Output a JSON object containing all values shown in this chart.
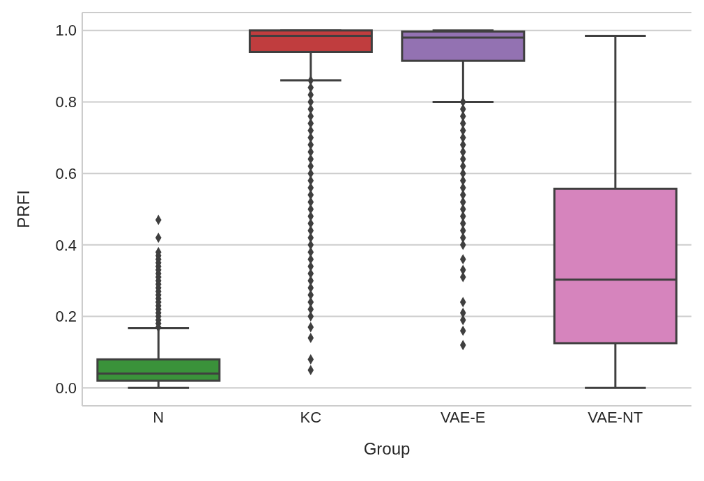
{
  "chart_data": {
    "type": "box",
    "xlabel": "Group",
    "ylabel": "PRFI",
    "categories": [
      "N",
      "KC",
      "VAE-E",
      "VAE-NT"
    ],
    "colors": [
      "#3a923a",
      "#c03d3e",
      "#9372b2",
      "#d684bd"
    ],
    "boxes": [
      {
        "low": 0,
        "q1": 0.02,
        "median": 0.04,
        "q3": 0.08,
        "high": 0.167,
        "outliers": [
          0.17,
          0.18,
          0.19,
          0.2,
          0.21,
          0.22,
          0.23,
          0.24,
          0.25,
          0.26,
          0.27,
          0.28,
          0.29,
          0.3,
          0.31,
          0.32,
          0.33,
          0.34,
          0.35,
          0.36,
          0.37,
          0.38,
          0.42,
          0.47
        ]
      },
      {
        "low": 0.86,
        "q1": 0.94,
        "median": 0.985,
        "q3": 1.0,
        "high": 1.0,
        "outliers": [
          0.05,
          0.08,
          0.14,
          0.17,
          0.2,
          0.22,
          0.24,
          0.26,
          0.28,
          0.3,
          0.32,
          0.34,
          0.36,
          0.38,
          0.4,
          0.42,
          0.44,
          0.46,
          0.48,
          0.5,
          0.52,
          0.54,
          0.56,
          0.58,
          0.6,
          0.62,
          0.64,
          0.66,
          0.68,
          0.7,
          0.72,
          0.74,
          0.76,
          0.78,
          0.8,
          0.82,
          0.84,
          0.86
        ]
      },
      {
        "low": 0.8,
        "q1": 0.915,
        "median": 0.98,
        "q3": 0.997,
        "high": 1.0,
        "outliers": [
          0.12,
          0.16,
          0.19,
          0.21,
          0.24,
          0.31,
          0.33,
          0.36,
          0.4,
          0.42,
          0.44,
          0.46,
          0.48,
          0.5,
          0.52,
          0.54,
          0.56,
          0.58,
          0.6,
          0.62,
          0.64,
          0.66,
          0.68,
          0.7,
          0.72,
          0.74,
          0.76,
          0.78,
          0.8
        ]
      },
      {
        "low": 0,
        "q1": 0.125,
        "median": 0.303,
        "q3": 0.557,
        "high": 0.985
      }
    ],
    "ylim": [
      -0.05,
      1.05
    ],
    "yticks": [
      {
        "value": 0,
        "label": "0.0"
      },
      0.2,
      0.4,
      0.6,
      0.8,
      {
        "value": 1,
        "label": "1.0"
      }
    ],
    "grid": "y"
  }
}
